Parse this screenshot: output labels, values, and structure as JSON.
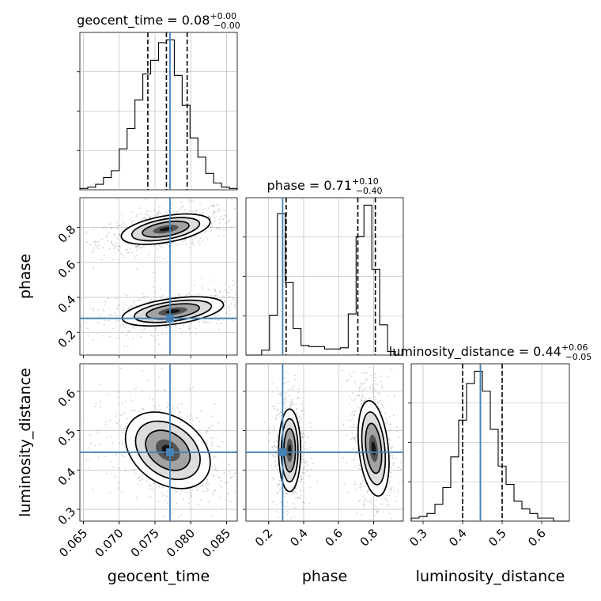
{
  "chart_data": {
    "type": "corner",
    "parameters": [
      "geocent_time",
      "phase",
      "luminosity_distance"
    ],
    "truth": {
      "geocent_time": 0.0771,
      "phase": 0.28,
      "luminosity_distance": 0.445
    },
    "ranges": {
      "geocent_time": [
        0.0645,
        0.0865
      ],
      "phase": [
        0.07,
        0.97
      ],
      "luminosity_distance": [
        0.27,
        0.67
      ]
    },
    "ticks": {
      "geocent_time": [
        "0.065",
        "0.070",
        "0.075",
        "0.080",
        "0.085"
      ],
      "phase": [
        "0.2",
        "0.4",
        "0.6",
        "0.8"
      ],
      "luminosity_distance": [
        "0.3",
        "0.4",
        "0.5",
        "0.6"
      ]
    },
    "diagonal": [
      {
        "parameter": "geocent_time",
        "title_prefix": "geocent_time = 0.08",
        "title_sup": "+0.00",
        "title_sub": "−0.00",
        "quantiles": [
          0.074,
          0.0766,
          0.0795
        ],
        "bin_edges": [
          0.0645,
          0.0656,
          0.0667,
          0.0678,
          0.0689,
          0.07,
          0.0711,
          0.0722,
          0.0733,
          0.0744,
          0.0755,
          0.0766,
          0.0777,
          0.0788,
          0.0799,
          0.081,
          0.0821,
          0.0832,
          0.0843,
          0.0854,
          0.0865
        ],
        "counts": [
          1,
          2,
          4,
          9,
          14,
          30,
          45,
          66,
          85,
          95,
          108,
          110,
          84,
          62,
          38,
          24,
          12,
          5,
          2,
          1
        ]
      },
      {
        "parameter": "phase",
        "title_prefix": "phase = 0.71",
        "title_sup": "+0.10",
        "title_sub": "−0.40",
        "quantiles": [
          0.3,
          0.71,
          0.81
        ],
        "bin_edges": [
          0.07,
          0.115,
          0.16,
          0.205,
          0.25,
          0.295,
          0.34,
          0.385,
          0.43,
          0.475,
          0.52,
          0.565,
          0.61,
          0.655,
          0.7,
          0.745,
          0.79,
          0.835,
          0.88,
          0.925,
          0.97
        ],
        "counts": [
          0,
          0,
          4,
          33,
          117,
          60,
          22,
          8,
          7,
          7,
          5,
          5,
          6,
          34,
          98,
          124,
          71,
          25,
          3,
          0
        ]
      },
      {
        "parameter": "luminosity_distance",
        "title_prefix": "luminosity_distance = 0.44",
        "title_sup": "+0.06",
        "title_sub": "−0.05",
        "quantiles": [
          0.4,
          0.445,
          0.5
        ],
        "bin_edges": [
          0.27,
          0.29,
          0.31,
          0.33,
          0.35,
          0.37,
          0.39,
          0.41,
          0.43,
          0.45,
          0.47,
          0.49,
          0.51,
          0.53,
          0.55,
          0.57,
          0.59,
          0.61,
          0.63,
          0.65,
          0.67
        ],
        "counts": [
          2,
          3,
          5,
          11,
          22,
          42,
          66,
          90,
          98,
          85,
          60,
          36,
          24,
          13,
          8,
          5,
          2,
          2,
          0,
          0
        ]
      }
    ],
    "joint": [
      {
        "x": "geocent_time",
        "y": "phase",
        "blobs": [
          {
            "cx": 0.0765,
            "cy": 0.79,
            "sx": 0.003,
            "sy": 0.036,
            "rot": -10,
            "w": 1.0
          },
          {
            "cx": 0.0775,
            "cy": 0.32,
            "sx": 0.0034,
            "sy": 0.035,
            "rot": -8,
            "w": 0.9
          }
        ]
      },
      {
        "x": "geocent_time",
        "y": "luminosity_distance",
        "blobs": [
          {
            "cx": 0.0768,
            "cy": 0.45,
            "sx": 0.0031,
            "sy": 0.04,
            "rot": 36,
            "w": 1.0
          }
        ]
      },
      {
        "x": "phase",
        "y": "luminosity_distance",
        "blobs": [
          {
            "cx": 0.32,
            "cy": 0.45,
            "sx": 0.03,
            "sy": 0.05,
            "rot": 0,
            "w": 0.85
          },
          {
            "cx": 0.8,
            "cy": 0.455,
            "sx": 0.04,
            "sy": 0.058,
            "rot": -6,
            "w": 1.0
          }
        ]
      }
    ],
    "colors": {
      "truth": "#4682b4",
      "hist": "#000000",
      "grid": "#b0b0b0",
      "quantile": "#000000"
    }
  }
}
